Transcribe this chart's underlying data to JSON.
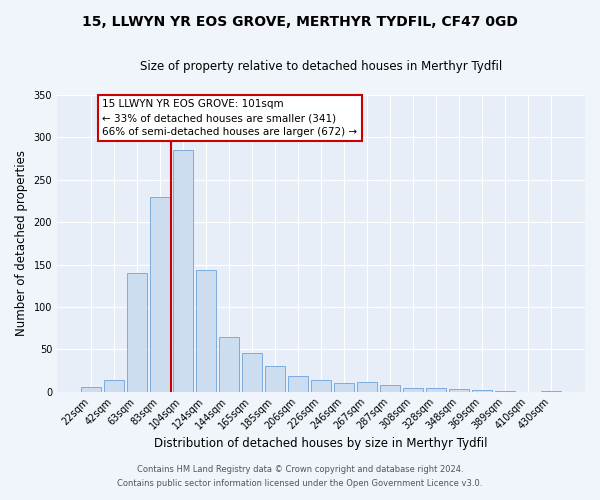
{
  "title": "15, LLWYN YR EOS GROVE, MERTHYR TYDFIL, CF47 0GD",
  "subtitle": "Size of property relative to detached houses in Merthyr Tydfil",
  "xlabel": "Distribution of detached houses by size in Merthyr Tydfil",
  "ylabel": "Number of detached properties",
  "bar_labels": [
    "22sqm",
    "42sqm",
    "63sqm",
    "83sqm",
    "104sqm",
    "124sqm",
    "144sqm",
    "165sqm",
    "185sqm",
    "206sqm",
    "226sqm",
    "246sqm",
    "267sqm",
    "287sqm",
    "308sqm",
    "328sqm",
    "348sqm",
    "369sqm",
    "389sqm",
    "410sqm",
    "430sqm"
  ],
  "bar_values": [
    5,
    14,
    140,
    230,
    285,
    144,
    65,
    46,
    30,
    19,
    14,
    10,
    11,
    8,
    4,
    4,
    3,
    2,
    1,
    0,
    1
  ],
  "bar_color": "#ccddf0",
  "bar_edge_color": "#7aade0",
  "background_color": "#f0f4fb",
  "plot_bg_color": "#e8eef8",
  "vline_color": "#cc0000",
  "annotation_title": "15 LLWYN YR EOS GROVE: 101sqm",
  "annotation_line1": "← 33% of detached houses are smaller (341)",
  "annotation_line2": "66% of semi-detached houses are larger (672) →",
  "annotation_box_color": "#ffffff",
  "annotation_box_edge_color": "#cc0000",
  "ylim": [
    0,
    350
  ],
  "yticks": [
    0,
    50,
    100,
    150,
    200,
    250,
    300,
    350
  ],
  "footer1": "Contains HM Land Registry data © Crown copyright and database right 2024.",
  "footer2": "Contains public sector information licensed under the Open Government Licence v3.0.",
  "title_fontsize": 10,
  "subtitle_fontsize": 8.5,
  "axis_label_fontsize": 8.5,
  "tick_fontsize": 7,
  "footer_fontsize": 6
}
